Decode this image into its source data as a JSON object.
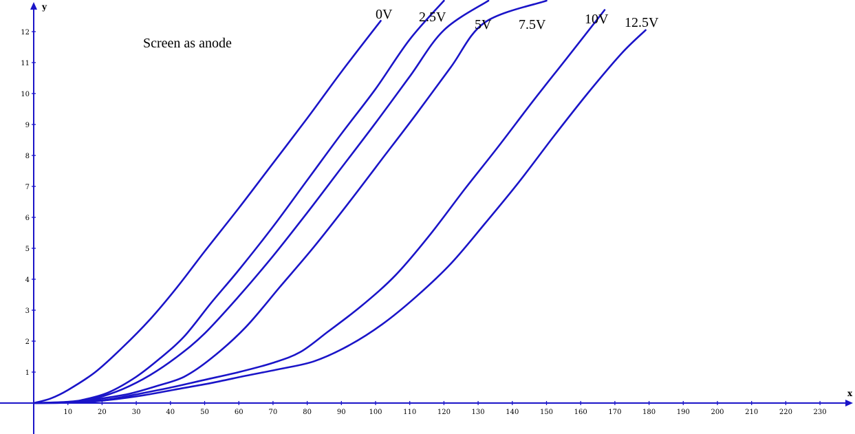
{
  "chart_data": {
    "type": "line",
    "title": "Screen as anode",
    "xlabel": "x",
    "ylabel": "y",
    "xlim": [
      0,
      239
    ],
    "ylim": [
      0,
      12.9
    ],
    "x_ticks": [
      10,
      20,
      30,
      40,
      50,
      60,
      70,
      80,
      90,
      100,
      110,
      120,
      130,
      140,
      150,
      160,
      170,
      180,
      190,
      200,
      210,
      220,
      230
    ],
    "y_ticks": [
      1,
      2,
      3,
      4,
      5,
      6,
      7,
      8,
      9,
      10,
      11,
      12
    ],
    "grid": false,
    "line_color": "#1a14c8",
    "axis_color": "#1a14c8",
    "series": [
      {
        "name": "0V",
        "points": [
          [
            0,
            0
          ],
          [
            5,
            0.15
          ],
          [
            10,
            0.42
          ],
          [
            18,
            1.0
          ],
          [
            26,
            1.8
          ],
          [
            34,
            2.7
          ],
          [
            42,
            3.75
          ],
          [
            50,
            4.9
          ],
          [
            60,
            6.3
          ],
          [
            70,
            7.75
          ],
          [
            80,
            9.2
          ],
          [
            90,
            10.7
          ],
          [
            101.5,
            12.35
          ]
        ]
      },
      {
        "name": "2.5V",
        "points": [
          [
            0,
            0
          ],
          [
            10,
            0.04
          ],
          [
            15,
            0.12
          ],
          [
            22,
            0.35
          ],
          [
            30,
            0.85
          ],
          [
            37,
            1.45
          ],
          [
            44,
            2.15
          ],
          [
            52,
            3.25
          ],
          [
            60,
            4.3
          ],
          [
            70,
            5.7
          ],
          [
            80,
            7.2
          ],
          [
            90,
            8.7
          ],
          [
            100,
            10.15
          ],
          [
            110,
            11.75
          ],
          [
            120,
            13.0
          ]
        ]
      },
      {
        "name": "5V",
        "points": [
          [
            0,
            0
          ],
          [
            12,
            0.03
          ],
          [
            18,
            0.15
          ],
          [
            26,
            0.45
          ],
          [
            34,
            0.9
          ],
          [
            42,
            1.5
          ],
          [
            50,
            2.25
          ],
          [
            60,
            3.45
          ],
          [
            70,
            4.75
          ],
          [
            80,
            6.15
          ],
          [
            90,
            7.6
          ],
          [
            100,
            9.05
          ],
          [
            110,
            10.55
          ],
          [
            120,
            12.05
          ],
          [
            133,
            13.0
          ]
        ]
      },
      {
        "name": "7.5V",
        "points": [
          [
            0,
            0
          ],
          [
            12,
            0.02
          ],
          [
            20,
            0.15
          ],
          [
            28,
            0.3
          ],
          [
            36,
            0.55
          ],
          [
            44,
            0.85
          ],
          [
            52,
            1.45
          ],
          [
            62,
            2.45
          ],
          [
            72,
            3.75
          ],
          [
            82,
            5.05
          ],
          [
            92,
            6.45
          ],
          [
            102,
            7.9
          ],
          [
            112,
            9.35
          ],
          [
            122,
            10.85
          ],
          [
            132,
            12.3
          ],
          [
            150,
            13.0
          ]
        ]
      },
      {
        "name": "10V",
        "points": [
          [
            0,
            0
          ],
          [
            14,
            0.03
          ],
          [
            22,
            0.12
          ],
          [
            30,
            0.28
          ],
          [
            40,
            0.5
          ],
          [
            50,
            0.75
          ],
          [
            60,
            1.0
          ],
          [
            70,
            1.3
          ],
          [
            78,
            1.65
          ],
          [
            86,
            2.3
          ],
          [
            96,
            3.15
          ],
          [
            106,
            4.15
          ],
          [
            116,
            5.45
          ],
          [
            126,
            6.9
          ],
          [
            136,
            8.3
          ],
          [
            146,
            9.75
          ],
          [
            156,
            11.15
          ],
          [
            167,
            12.7
          ]
        ]
      },
      {
        "name": "12.5V",
        "points": [
          [
            0,
            0
          ],
          [
            14,
            0.02
          ],
          [
            22,
            0.1
          ],
          [
            32,
            0.25
          ],
          [
            42,
            0.45
          ],
          [
            52,
            0.65
          ],
          [
            62,
            0.88
          ],
          [
            72,
            1.1
          ],
          [
            82,
            1.35
          ],
          [
            92,
            1.85
          ],
          [
            102,
            2.55
          ],
          [
            112,
            3.45
          ],
          [
            122,
            4.5
          ],
          [
            132,
            5.8
          ],
          [
            142,
            7.15
          ],
          [
            152,
            8.6
          ],
          [
            162,
            10.0
          ],
          [
            172,
            11.3
          ],
          [
            179,
            12.05
          ]
        ]
      }
    ]
  }
}
